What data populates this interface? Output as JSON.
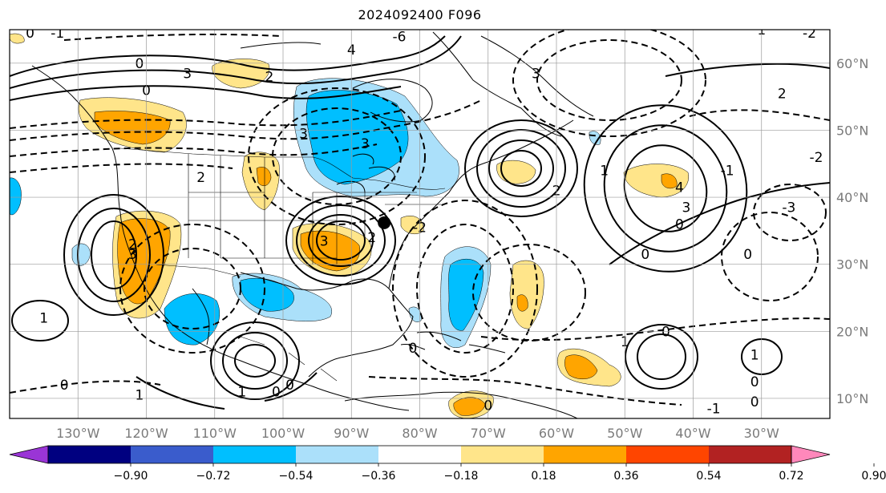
{
  "title": "2024092400 F096",
  "map": {
    "lon_range": [
      -140,
      -20
    ],
    "lat_range": [
      7,
      65
    ],
    "lon_ticks": [
      {
        "value": -130,
        "label": "130°W"
      },
      {
        "value": -120,
        "label": "120°W"
      },
      {
        "value": -110,
        "label": "110°W"
      },
      {
        "value": -100,
        "label": "100°W"
      },
      {
        "value": -90,
        "label": "90°W"
      },
      {
        "value": -80,
        "label": "80°W"
      },
      {
        "value": -70,
        "label": "70°W"
      },
      {
        "value": -60,
        "label": "60°W"
      },
      {
        "value": -50,
        "label": "50°W"
      },
      {
        "value": -40,
        "label": "40°W"
      },
      {
        "value": -30,
        "label": "30°W"
      }
    ],
    "lat_ticks": [
      {
        "value": 10,
        "label": "10°N"
      },
      {
        "value": 20,
        "label": "20°N"
      },
      {
        "value": 30,
        "label": "30°N"
      },
      {
        "value": 40,
        "label": "40°N"
      },
      {
        "value": 50,
        "label": "50°N"
      },
      {
        "value": 60,
        "label": "60°N"
      }
    ],
    "grid": true,
    "marker": {
      "lon": -85.2,
      "lat": 36.2
    },
    "contour_labels": [
      {
        "text": "0",
        "lon": -121,
        "lat": 60
      },
      {
        "text": "4",
        "lon": -90,
        "lat": 62
      },
      {
        "text": "2",
        "lon": -102,
        "lat": 58
      },
      {
        "text": "3",
        "lon": -122,
        "lat": 31.5
      },
      {
        "text": "2",
        "lon": -122,
        "lat": 33
      },
      {
        "text": "2",
        "lon": -112,
        "lat": 43
      },
      {
        "text": "3",
        "lon": -94,
        "lat": 33.5
      },
      {
        "text": "2",
        "lon": -87,
        "lat": 34
      },
      {
        "text": "1",
        "lon": -135,
        "lat": 22
      },
      {
        "text": "0",
        "lon": -132,
        "lat": 12
      },
      {
        "text": "1",
        "lon": -121,
        "lat": 10.5
      },
      {
        "text": "1",
        "lon": -106,
        "lat": 11
      },
      {
        "text": "0",
        "lon": -101,
        "lat": 11
      },
      {
        "text": "0",
        "lon": -99,
        "lat": 12
      },
      {
        "text": "0",
        "lon": -81,
        "lat": 17.5
      },
      {
        "text": "0",
        "lon": -70,
        "lat": 9
      },
      {
        "text": "4",
        "lon": -42,
        "lat": 41.5
      },
      {
        "text": "3",
        "lon": -41,
        "lat": 38.5
      },
      {
        "text": "0",
        "lon": -42,
        "lat": 36
      },
      {
        "text": "0",
        "lon": -47,
        "lat": 31.5
      },
      {
        "text": "0",
        "lon": -44,
        "lat": 20
      },
      {
        "text": "1",
        "lon": -50,
        "lat": 18.5
      },
      {
        "text": "1",
        "lon": -31,
        "lat": 16.5
      },
      {
        "text": "0",
        "lon": -31,
        "lat": 12.5
      },
      {
        "text": "0",
        "lon": -31,
        "lat": 9.5
      },
      {
        "text": "-1",
        "lon": -37,
        "lat": 8.5
      },
      {
        "text": "2",
        "lon": -27,
        "lat": 55.5
      },
      {
        "text": "1",
        "lon": -30,
        "lat": 65
      },
      {
        "text": "-2",
        "lon": -23,
        "lat": 64.5
      },
      {
        "text": "-2",
        "lon": -22,
        "lat": 46
      },
      {
        "text": "-3",
        "lon": -26,
        "lat": 38.5
      },
      {
        "text": "0",
        "lon": -32,
        "lat": 31.5
      },
      {
        "text": "-1",
        "lon": -35,
        "lat": 44
      },
      {
        "text": "2",
        "lon": -60,
        "lat": 41
      },
      {
        "text": "3",
        "lon": -63,
        "lat": 58.5
      },
      {
        "text": "1",
        "lon": -53,
        "lat": 44
      },
      {
        "text": "-1",
        "lon": -133,
        "lat": 64.5
      },
      {
        "text": "0",
        "lon": -137,
        "lat": 64.5
      },
      {
        "text": "0",
        "lon": -120,
        "lat": 56
      },
      {
        "text": "3",
        "lon": -114,
        "lat": 58.5
      },
      {
        "text": "3",
        "lon": -97,
        "lat": 49.5
      },
      {
        "text": "3",
        "lon": -88,
        "lat": 48
      },
      {
        "text": "-6",
        "lon": -83,
        "lat": 64
      },
      {
        "text": "-2",
        "lon": -80,
        "lat": 35.5
      }
    ]
  },
  "colorbar": {
    "boundaries": [
      "−0.90",
      "−0.72",
      "−0.54",
      "−0.36",
      "−0.18",
      "0.18",
      "0.36",
      "0.54",
      "0.72",
      "0.90"
    ],
    "colors": [
      "#9a35d6",
      "#000080",
      "#3a5ccc",
      "#00bfff",
      "#abe0fa",
      "#ffffff",
      "#ffe58a",
      "#ffa500",
      "#ff4500",
      "#b22222",
      "#ff88bb"
    ]
  }
}
